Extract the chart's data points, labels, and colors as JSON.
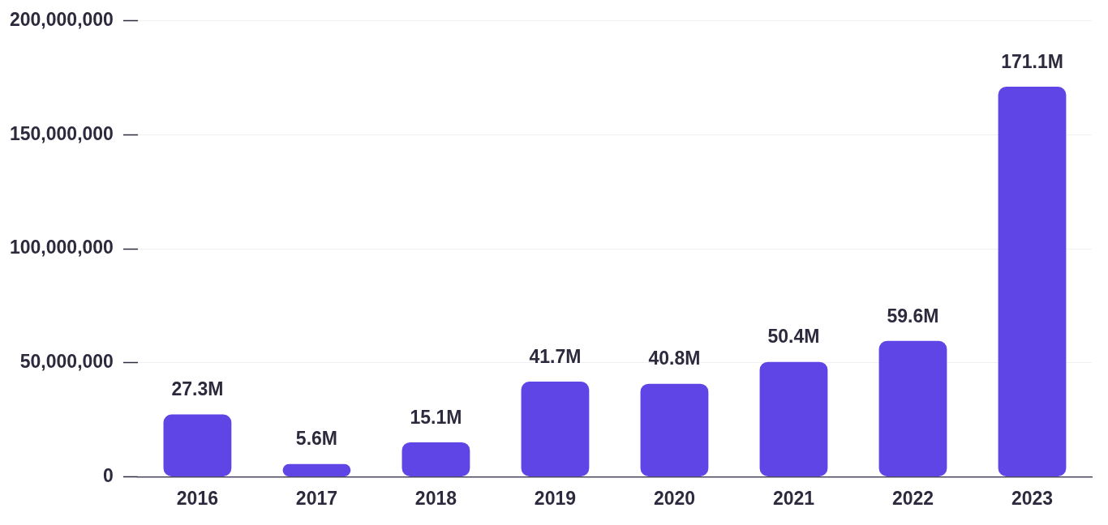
{
  "chart_data": {
    "type": "bar",
    "categories": [
      "2016",
      "2017",
      "2018",
      "2019",
      "2020",
      "2021",
      "2022",
      "2023"
    ],
    "values": [
      27300000,
      5600000,
      15100000,
      41700000,
      40800000,
      50400000,
      59600000,
      171100000
    ],
    "value_labels": [
      "27.3M",
      "5.6M",
      "15.1M",
      "41.7M",
      "40.8M",
      "50.4M",
      "59.6M",
      "171.1M"
    ],
    "color": "#5f45e6",
    "ylim": [
      0,
      200000000
    ],
    "yticks": [
      {
        "value": 0,
        "label": "0"
      },
      {
        "value": 50000000,
        "label": "50,000,000"
      },
      {
        "value": 100000000,
        "label": "100,000,000"
      },
      {
        "value": 150000000,
        "label": "150,000,000"
      },
      {
        "value": 200000000,
        "label": "200,000,000"
      }
    ],
    "grid": "y",
    "legend": false
  }
}
